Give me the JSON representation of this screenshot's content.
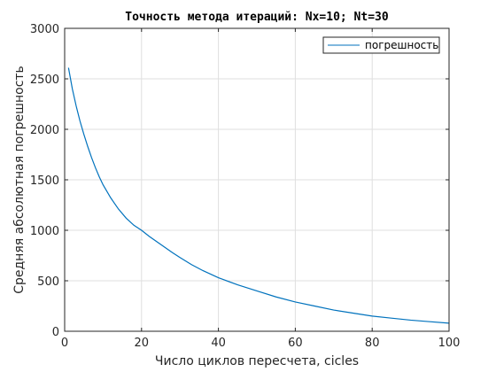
{
  "chart_data": {
    "type": "line",
    "title": "Точность метода итераций: Nx=10; Nt=30",
    "xlabel": "Число циклов пересчета, cicles",
    "ylabel": "Средняя абсолютная погрешность",
    "xlim": [
      0,
      100
    ],
    "ylim": [
      0,
      3000
    ],
    "xticks": [
      0,
      20,
      40,
      60,
      80,
      100
    ],
    "yticks": [
      0,
      500,
      1000,
      1500,
      2000,
      2500,
      3000
    ],
    "grid": true,
    "legend_position": "top-right",
    "series": [
      {
        "name": "погрешность",
        "color": "#0072bd",
        "x": [
          1,
          2,
          3,
          4,
          5,
          6,
          7,
          8,
          9,
          10,
          12,
          14,
          16,
          18,
          20,
          22,
          25,
          28,
          30,
          33,
          36,
          40,
          45,
          50,
          55,
          60,
          65,
          70,
          75,
          80,
          85,
          90,
          95,
          100
        ],
        "y": [
          2610,
          2400,
          2230,
          2080,
          1950,
          1830,
          1720,
          1620,
          1530,
          1450,
          1320,
          1210,
          1120,
          1050,
          1000,
          940,
          860,
          780,
          730,
          660,
          600,
          530,
          460,
          400,
          340,
          290,
          250,
          210,
          180,
          150,
          130,
          110,
          95,
          80
        ]
      }
    ]
  }
}
